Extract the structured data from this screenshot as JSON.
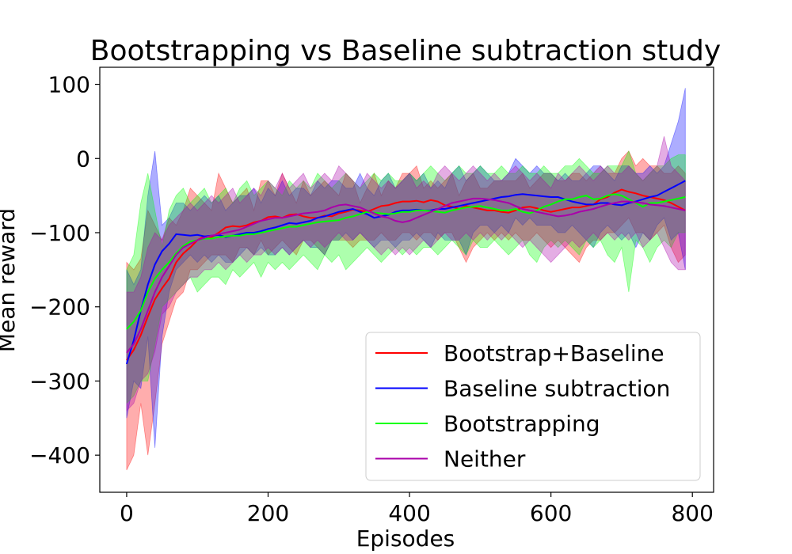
{
  "chart_data": {
    "type": "line",
    "title": "Bootstrapping vs Baseline subtraction study",
    "xlabel": "Episodes",
    "ylabel": "Mean reward",
    "xlim": [
      -38,
      830
    ],
    "ylim": [
      -450,
      123
    ],
    "xticks": [
      0,
      200,
      400,
      600,
      800
    ],
    "yticks": [
      100,
      0,
      -100,
      -200,
      -300,
      -400
    ],
    "xtick_labels": [
      "0",
      "200",
      "400",
      "600",
      "800"
    ],
    "ytick_labels": [
      "100",
      "0",
      "−100",
      "−200",
      "−300",
      "−400"
    ],
    "grid": false,
    "legend_position": "lower-right",
    "x": [
      0,
      10,
      20,
      30,
      40,
      50,
      60,
      70,
      80,
      90,
      100,
      110,
      120,
      130,
      140,
      150,
      160,
      170,
      180,
      190,
      200,
      210,
      220,
      230,
      240,
      250,
      260,
      270,
      280,
      290,
      300,
      310,
      320,
      330,
      340,
      350,
      360,
      370,
      380,
      390,
      400,
      410,
      420,
      430,
      440,
      450,
      460,
      470,
      480,
      490,
      500,
      510,
      520,
      530,
      540,
      550,
      560,
      570,
      580,
      590,
      600,
      610,
      620,
      630,
      640,
      650,
      660,
      670,
      680,
      690,
      700,
      710,
      720,
      730,
      740,
      750,
      760,
      770,
      780,
      790
    ],
    "series": [
      {
        "name": "Bootstrap+Baseline",
        "color": "#ff0000",
        "mean": [
          -272,
          -258,
          -238,
          -213,
          -190,
          -175,
          -162,
          -140,
          -128,
          -120,
          -110,
          -105,
          -106,
          -100,
          -93,
          -91,
          -92,
          -90,
          -86,
          -84,
          -79,
          -78,
          -80,
          -76,
          -75,
          -78,
          -80,
          -80,
          -77,
          -78,
          -74,
          -72,
          -69,
          -70,
          -72,
          -68,
          -64,
          -63,
          -60,
          -58,
          -58,
          -57,
          -59,
          -56,
          -58,
          -63,
          -65,
          -68,
          -64,
          -66,
          -68,
          -70,
          -70,
          -72,
          -73,
          -70,
          -66,
          -65,
          -67,
          -70,
          -72,
          -70,
          -68,
          -66,
          -66,
          -64,
          -62,
          -55,
          -52,
          -46,
          -42,
          -45,
          -47,
          -50,
          -52,
          -54,
          -56,
          -60,
          -65,
          -70
        ],
        "upper": [
          -140,
          -150,
          -135,
          -70,
          -90,
          -110,
          -80,
          -90,
          -70,
          -40,
          -50,
          -60,
          -70,
          -20,
          -40,
          -60,
          -50,
          -40,
          -70,
          -30,
          -30,
          -50,
          -20,
          -40,
          -60,
          -30,
          -50,
          -40,
          -30,
          -40,
          -50,
          -20,
          -30,
          -60,
          -40,
          -20,
          -50,
          -30,
          -40,
          -20,
          -20,
          -10,
          -40,
          -30,
          -40,
          -30,
          -20,
          -50,
          -30,
          -20,
          -40,
          -40,
          -30,
          -30,
          -30,
          -30,
          -20,
          -40,
          -30,
          -20,
          -20,
          -30,
          -30,
          -20,
          -20,
          -30,
          -20,
          -10,
          -20,
          -20,
          0,
          10,
          -10,
          0,
          -10,
          -10,
          -20,
          -20,
          -10,
          -20
        ],
        "lower": [
          -420,
          -400,
          -330,
          -400,
          -330,
          -250,
          -220,
          -190,
          -180,
          -150,
          -150,
          -140,
          -130,
          -130,
          -130,
          -140,
          -120,
          -120,
          -130,
          -110,
          -130,
          -120,
          -110,
          -120,
          -130,
          -110,
          -110,
          -120,
          -130,
          -110,
          -110,
          -110,
          -120,
          -110,
          -110,
          -110,
          -100,
          -110,
          -110,
          -100,
          -100,
          -110,
          -100,
          -100,
          -110,
          -100,
          -100,
          -120,
          -140,
          -120,
          -110,
          -100,
          -110,
          -100,
          -110,
          -100,
          -110,
          -110,
          -100,
          -110,
          -120,
          -110,
          -120,
          -130,
          -140,
          -120,
          -110,
          -110,
          -100,
          -100,
          -90,
          -80,
          -100,
          -100,
          -110,
          -100,
          -90,
          -120,
          -140,
          -130
        ]
      },
      {
        "name": "Baseline subtraction",
        "color": "#0000ff",
        "mean": [
          -277,
          -245,
          -205,
          -170,
          -143,
          -125,
          -115,
          -102,
          -103,
          -104,
          -103,
          -105,
          -104,
          -103,
          -106,
          -104,
          -102,
          -100,
          -100,
          -98,
          -95,
          -93,
          -90,
          -87,
          -88,
          -86,
          -84,
          -80,
          -78,
          -75,
          -72,
          -70,
          -68,
          -72,
          -75,
          -80,
          -78,
          -76,
          -72,
          -70,
          -70,
          -69,
          -70,
          -70,
          -68,
          -68,
          -66,
          -64,
          -62,
          -60,
          -58,
          -56,
          -54,
          -52,
          -51,
          -49,
          -48,
          -49,
          -50,
          -51,
          -52,
          -52,
          -55,
          -58,
          -60,
          -62,
          -62,
          -60,
          -60,
          -62,
          -63,
          -60,
          -58,
          -55,
          -52,
          -50,
          -45,
          -40,
          -35,
          -30
        ],
        "upper": [
          -150,
          -170,
          -150,
          -50,
          10,
          -90,
          -80,
          -60,
          -60,
          -70,
          -60,
          -50,
          -60,
          -50,
          -70,
          -60,
          -50,
          -50,
          -40,
          -60,
          -40,
          -50,
          -30,
          -50,
          -40,
          -40,
          -50,
          -30,
          -40,
          -30,
          -30,
          -40,
          -40,
          -20,
          -40,
          -50,
          -30,
          -20,
          -40,
          -30,
          -20,
          -30,
          -20,
          -40,
          -30,
          -40,
          -20,
          -10,
          -30,
          -20,
          -10,
          -20,
          -30,
          -30,
          -20,
          0,
          -10,
          -20,
          -10,
          -20,
          -20,
          -30,
          -20,
          -30,
          -30,
          -20,
          -10,
          -10,
          -20,
          -30,
          -10,
          -10,
          -20,
          -20,
          -10,
          -20,
          -10,
          20,
          50,
          95
        ],
        "lower": [
          -350,
          -300,
          -310,
          -240,
          -390,
          -240,
          -180,
          -150,
          -140,
          -130,
          -140,
          -130,
          -140,
          -130,
          -140,
          -140,
          -130,
          -120,
          -130,
          -120,
          -130,
          -130,
          -120,
          -130,
          -120,
          -110,
          -120,
          -120,
          -130,
          -110,
          -110,
          -100,
          -110,
          -100,
          -110,
          -120,
          -110,
          -110,
          -120,
          -110,
          -110,
          -100,
          -110,
          -120,
          -100,
          -110,
          -110,
          -110,
          -130,
          -100,
          -90,
          -90,
          -100,
          -90,
          -100,
          -80,
          -90,
          -80,
          -90,
          -90,
          -90,
          -100,
          -100,
          -90,
          -100,
          -110,
          -120,
          -100,
          -90,
          -100,
          -110,
          -100,
          -120,
          -100,
          -110,
          -90,
          -80,
          -110,
          -100,
          -150
        ]
      },
      {
        "name": "Bootstrapping",
        "color": "#00ff00",
        "mean": [
          -230,
          -220,
          -205,
          -180,
          -162,
          -150,
          -140,
          -128,
          -118,
          -112,
          -110,
          -108,
          -108,
          -106,
          -105,
          -104,
          -104,
          -102,
          -102,
          -100,
          -98,
          -96,
          -94,
          -92,
          -92,
          -90,
          -88,
          -86,
          -85,
          -84,
          -83,
          -80,
          -78,
          -75,
          -72,
          -73,
          -74,
          -75,
          -74,
          -72,
          -72,
          -70,
          -70,
          -71,
          -72,
          -73,
          -70,
          -68,
          -66,
          -65,
          -64,
          -66,
          -68,
          -70,
          -70,
          -68,
          -72,
          -74,
          -70,
          -65,
          -62,
          -58,
          -55,
          -55,
          -52,
          -50,
          -55,
          -54,
          -50,
          -48,
          -50,
          -55,
          -60,
          -65,
          -60,
          -60,
          -58,
          -56,
          -54,
          -52
        ],
        "upper": [
          -150,
          -130,
          -60,
          -20,
          -70,
          -120,
          -70,
          -50,
          -40,
          -60,
          -50,
          -40,
          -60,
          -50,
          -40,
          -60,
          -40,
          -30,
          -50,
          -40,
          -30,
          -40,
          -50,
          -30,
          -40,
          -30,
          -40,
          -20,
          -30,
          -40,
          -30,
          -20,
          -30,
          -40,
          -30,
          -20,
          -30,
          -20,
          -30,
          -30,
          -20,
          -30,
          -20,
          -10,
          -20,
          -30,
          -20,
          -10,
          -20,
          -20,
          -10,
          -20,
          -20,
          -10,
          -20,
          -20,
          -10,
          -20,
          -20,
          -10,
          -20,
          -20,
          -10,
          -10,
          0,
          -10,
          -20,
          -20,
          -10,
          -10,
          -10,
          10,
          -20,
          -30,
          -20,
          -10,
          -10,
          0,
          5,
          5
        ],
        "lower": [
          -330,
          -320,
          -300,
          -300,
          -250,
          -200,
          -190,
          -180,
          -170,
          -160,
          -180,
          -170,
          -160,
          -160,
          -170,
          -150,
          -160,
          -150,
          -140,
          -160,
          -140,
          -150,
          -140,
          -150,
          -140,
          -130,
          -140,
          -150,
          -130,
          -140,
          -130,
          -150,
          -140,
          -130,
          -120,
          -130,
          -140,
          -130,
          -120,
          -130,
          -120,
          -130,
          -120,
          -120,
          -130,
          -120,
          -110,
          -120,
          -130,
          -110,
          -120,
          -120,
          -110,
          -120,
          -130,
          -120,
          -110,
          -130,
          -140,
          -120,
          -110,
          -120,
          -110,
          -120,
          -130,
          -110,
          -120,
          -110,
          -130,
          -140,
          -120,
          -180,
          -110,
          -120,
          -140,
          -120,
          -110,
          -120,
          -100,
          -100
        ]
      },
      {
        "name": "Neither",
        "color": "#aa00aa",
        "mean": [
          -262,
          -250,
          -230,
          -205,
          -180,
          -160,
          -145,
          -130,
          -120,
          -115,
          -110,
          -107,
          -104,
          -102,
          -100,
          -98,
          -96,
          -92,
          -88,
          -84,
          -82,
          -80,
          -80,
          -78,
          -76,
          -74,
          -73,
          -72,
          -70,
          -66,
          -63,
          -62,
          -64,
          -66,
          -70,
          -74,
          -78,
          -80,
          -84,
          -86,
          -84,
          -80,
          -76,
          -72,
          -68,
          -64,
          -60,
          -58,
          -56,
          -54,
          -54,
          -55,
          -56,
          -58,
          -60,
          -64,
          -68,
          -70,
          -72,
          -74,
          -76,
          -78,
          -77,
          -75,
          -72,
          -70,
          -68,
          -65,
          -62,
          -60,
          -58,
          -58,
          -59,
          -60,
          -62,
          -63,
          -64,
          -66,
          -68,
          -70
        ],
        "upper": [
          -180,
          -180,
          -160,
          -120,
          -100,
          -110,
          -90,
          -80,
          -70,
          -60,
          -70,
          -60,
          -50,
          -60,
          -50,
          -40,
          -60,
          -50,
          -40,
          -50,
          -30,
          -40,
          -20,
          -40,
          -30,
          -20,
          -40,
          -30,
          -20,
          -30,
          -10,
          -20,
          -30,
          -40,
          -20,
          -30,
          -40,
          -30,
          -40,
          -30,
          -20,
          -40,
          -30,
          -40,
          -20,
          -10,
          -20,
          -30,
          -20,
          -10,
          -20,
          -30,
          -20,
          -30,
          -20,
          -10,
          -20,
          -30,
          -20,
          -30,
          -40,
          -20,
          -30,
          -20,
          -10,
          -20,
          -30,
          -20,
          -10,
          -20,
          -20,
          -10,
          -20,
          -30,
          -20,
          -10,
          30,
          -10,
          -20,
          -30
        ],
        "lower": [
          -340,
          -330,
          -300,
          -290,
          -260,
          -210,
          -200,
          -180,
          -170,
          -160,
          -160,
          -150,
          -150,
          -140,
          -150,
          -140,
          -130,
          -140,
          -130,
          -130,
          -120,
          -130,
          -120,
          -130,
          -120,
          -110,
          -120,
          -110,
          -120,
          -110,
          -100,
          -110,
          -110,
          -100,
          -110,
          -120,
          -130,
          -120,
          -130,
          -120,
          -130,
          -120,
          -110,
          -120,
          -110,
          -100,
          -110,
          -110,
          -100,
          -110,
          -100,
          -110,
          -100,
          -110,
          -100,
          -110,
          -120,
          -110,
          -120,
          -130,
          -140,
          -130,
          -120,
          -110,
          -120,
          -110,
          -100,
          -110,
          -100,
          -110,
          -100,
          -110,
          -100,
          -120,
          -110,
          -100,
          -120,
          -140,
          -150,
          -150
        ]
      }
    ]
  }
}
